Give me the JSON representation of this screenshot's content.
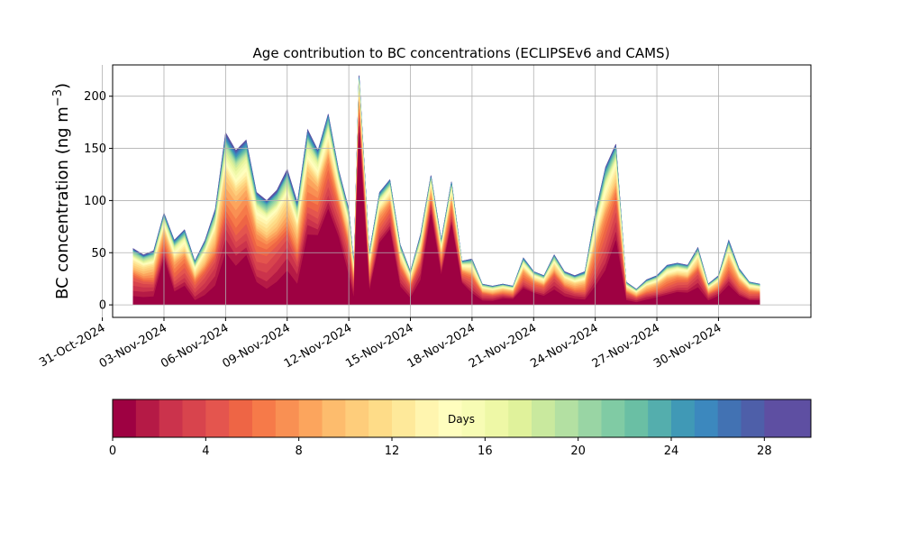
{
  "chart_data": {
    "type": "area",
    "title": "Age contribution to BC concentrations (ECLIPSEv6 and CAMS)",
    "ylabel": "BC concentration (ng m",
    "ylabel_sup": "−3",
    "ylabel_close": ")",
    "xlabel": "",
    "ylim": [
      -12,
      230
    ],
    "xlim": [
      "2024-10-31T12:00",
      "2024-12-04T12:00"
    ],
    "yticks": [
      0,
      50,
      100,
      150,
      200
    ],
    "xticks": [
      "31-Oct-2024",
      "03-Nov-2024",
      "06-Nov-2024",
      "09-Nov-2024",
      "12-Nov-2024",
      "15-Nov-2024",
      "18-Nov-2024",
      "21-Nov-2024",
      "24-Nov-2024",
      "27-Nov-2024",
      "30-Nov-2024"
    ],
    "grid": true,
    "stack_order": "oldest on top",
    "colorbar": {
      "label": "Days",
      "min": 0,
      "max": 30,
      "ticks": [
        0,
        4,
        8,
        12,
        16,
        20,
        24,
        28
      ],
      "colors": [
        "#9e0142",
        "#b51a46",
        "#cb334c",
        "#d8444d",
        "#e4554e",
        "#ee6545",
        "#f67a49",
        "#f99053",
        "#fca55d",
        "#fdbc6d",
        "#fecd7b",
        "#fedc88",
        "#fee99a",
        "#fff5af",
        "#fffebe",
        "#f7fcb4",
        "#eef8a6",
        "#e0f29b",
        "#c9e99e",
        "#b3e0a2",
        "#99d5a4",
        "#80cba4",
        "#6abfa4",
        "#54aead",
        "#4099b6",
        "#3c88be",
        "#4272b3",
        "#4e5fa9",
        "#5e4fa2",
        "#5e4fa2"
      ]
    },
    "x": [
      "11-01 12:00",
      "11-02 00:00",
      "11-02 12:00",
      "11-03 00:00",
      "11-03 12:00",
      "11-04 00:00",
      "11-04 12:00",
      "11-05 00:00",
      "11-05 12:00",
      "11-06 00:00",
      "11-06 12:00",
      "11-07 00:00",
      "11-07 12:00",
      "11-08 00:00",
      "11-08 12:00",
      "11-09 00:00",
      "11-09 12:00",
      "11-10 00:00",
      "11-10 12:00",
      "11-11 00:00",
      "11-11 12:00",
      "11-12 00:00",
      "11-12 06:00",
      "11-12 12:00",
      "11-13 00:00",
      "11-13 12:00",
      "11-14 00:00",
      "11-14 12:00",
      "11-15 00:00",
      "11-15 12:00",
      "11-16 00:00",
      "11-16 12:00",
      "11-17 00:00",
      "11-17 12:00",
      "11-18 00:00",
      "11-18 12:00",
      "11-19 00:00",
      "11-19 12:00",
      "11-20 00:00",
      "11-20 12:00",
      "11-21 00:00",
      "11-21 12:00",
      "11-22 00:00",
      "11-22 12:00",
      "11-23 00:00",
      "11-23 12:00",
      "11-24 00:00",
      "11-24 12:00",
      "11-25 00:00",
      "11-25 12:00",
      "11-26 00:00",
      "11-26 12:00",
      "11-27 00:00",
      "11-27 12:00",
      "11-28 00:00",
      "11-28 12:00",
      "11-29 00:00",
      "11-29 12:00",
      "11-30 00:00",
      "11-30 12:00",
      "12-01 00:00",
      "12-01 12:00",
      "12-02 00:00"
    ],
    "total": [
      54,
      48,
      52,
      88,
      62,
      72,
      42,
      62,
      92,
      165,
      148,
      158,
      108,
      100,
      110,
      130,
      98,
      168,
      148,
      183,
      130,
      92,
      38,
      220,
      50,
      108,
      120,
      58,
      32,
      68,
      124,
      62,
      118,
      42,
      44,
      20,
      18,
      20,
      18,
      45,
      32,
      28,
      48,
      32,
      28,
      32,
      88,
      132,
      154,
      22,
      15,
      24,
      28,
      38,
      40,
      38,
      55,
      20,
      28,
      62,
      35,
      22,
      20
    ],
    "fresh_share": [
      0.15,
      0.15,
      0.15,
      0.5,
      0.2,
      0.25,
      0.1,
      0.15,
      0.2,
      0.3,
      0.25,
      0.3,
      0.2,
      0.15,
      0.2,
      0.25,
      0.2,
      0.4,
      0.45,
      0.5,
      0.5,
      0.3,
      0.15,
      0.75,
      0.25,
      0.55,
      0.6,
      0.3,
      0.2,
      0.35,
      0.7,
      0.45,
      0.65,
      0.5,
      0.25,
      0.2,
      0.2,
      0.3,
      0.3,
      0.35,
      0.35,
      0.3,
      0.3,
      0.25,
      0.2,
      0.15,
      0.2,
      0.25,
      0.4,
      0.2,
      0.15,
      0.2,
      0.25,
      0.25,
      0.3,
      0.3,
      0.3,
      0.2,
      0.3,
      0.3,
      0.25,
      0.2,
      0.2
    ]
  }
}
